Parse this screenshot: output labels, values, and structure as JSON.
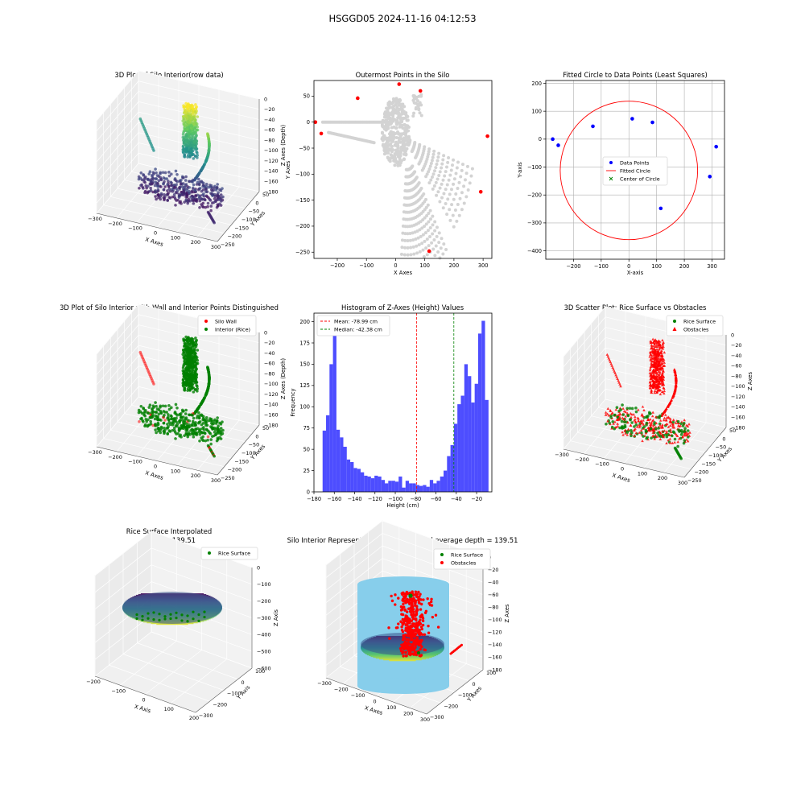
{
  "suptitle": "HSGGD05 2024-11-16 04:12:53",
  "colors": {
    "viridis": [
      "#440154",
      "#3b528b",
      "#21918c",
      "#5ec962",
      "#fde725"
    ],
    "grey_points": "#d3d3d3",
    "red": "#ff0000",
    "green": "#008000",
    "blue": "#0000ff",
    "hist_blue": "#4d4dff",
    "wall_blue": "#87ceeb"
  },
  "chart_data": [
    {
      "id": "p1",
      "type": "scatter3d",
      "title": "3D Plot of Silo Interior(row data)",
      "xlabel": "X Axes",
      "ylabel": "Y Axes",
      "zlabel": "Z Axes (Depth)",
      "xticks": [
        "−300",
        "−200",
        "−100",
        "0",
        "100",
        "200",
        "300"
      ],
      "yticks": [
        "50",
        "0",
        "−50",
        "−100",
        "−150",
        "−200",
        "−250"
      ],
      "zticks": [
        "0",
        "−20",
        "−40",
        "−60",
        "−80",
        "−100",
        "−120",
        "−140",
        "−160",
        "−180"
      ],
      "colormap": "viridis"
    },
    {
      "id": "p2",
      "type": "scatter",
      "title": "Outermost Points in the Silo",
      "xlabel": "X Axes",
      "ylabel": "Y Axes",
      "xlim": [
        -280,
        330
      ],
      "ylim": [
        -262,
        80
      ],
      "xticks": [
        -200,
        -100,
        0,
        100,
        200,
        300
      ],
      "yticks": [
        50,
        0,
        -50,
        -100,
        -150,
        -200,
        -250
      ],
      "outermost_points": [
        [
          -275,
          0
        ],
        [
          -255,
          -22
        ],
        [
          -130,
          46
        ],
        [
          12,
          73
        ],
        [
          85,
          60
        ],
        [
          315,
          -27
        ],
        [
          292,
          -134
        ],
        [
          115,
          -248
        ]
      ]
    },
    {
      "id": "p3",
      "type": "scatter",
      "title": "Fitted Circle to Data Points (Least Squares)",
      "xlabel": "X-axis",
      "ylabel": "Y-axis",
      "xlim": [
        -300,
        345
      ],
      "ylim": [
        -430,
        210
      ],
      "xticks": [
        -200,
        -100,
        0,
        100,
        200,
        300
      ],
      "yticks": [
        200,
        100,
        0,
        -100,
        -200,
        -300,
        -400
      ],
      "grid": true,
      "data_points": [
        [
          -275,
          0
        ],
        [
          -255,
          -22
        ],
        [
          -130,
          46
        ],
        [
          12,
          73
        ],
        [
          85,
          60
        ],
        [
          315,
          -27
        ],
        [
          292,
          -134
        ],
        [
          115,
          -248
        ]
      ],
      "circle_center": [
        0,
        -112
      ],
      "circle_radius": 248,
      "legend": [
        "Data Points",
        "Fitted Circle",
        "Center of Circle"
      ],
      "legend_position": "center right"
    },
    {
      "id": "p4",
      "type": "scatter3d",
      "title": "3D Plot of Silo Interior with Wall and Interior Points Distinguished",
      "xlabel": "X Axes",
      "ylabel": "Y Axes",
      "zlabel": "Z Axes (Depth)",
      "xticks": [
        "−300",
        "−200",
        "−100",
        "0",
        "100",
        "200",
        "300"
      ],
      "yticks": [
        "50",
        "0",
        "−50",
        "−100",
        "−150",
        "−200",
        "−250"
      ],
      "zticks": [
        "0",
        "−20",
        "−40",
        "−60",
        "−80",
        "−100",
        "−120",
        "−140",
        "−160",
        "−180"
      ],
      "legend": [
        "Silo Wall",
        "Interior (Rice)"
      ],
      "legend_position": "upper right"
    },
    {
      "id": "p5",
      "type": "bar",
      "title": "Histogram of Z-Axes (Height) Values",
      "xlabel": "Height (cm)",
      "ylabel": "Frequency",
      "xlim": [
        -180,
        -5
      ],
      "ylim": [
        0,
        210
      ],
      "xticks": [
        -180,
        -160,
        -140,
        -120,
        -100,
        -80,
        -60,
        -40,
        -20
      ],
      "yticks": [
        0,
        25,
        50,
        75,
        100,
        125,
        150,
        175,
        200
      ],
      "bin_start": -171.5,
      "bin_width": 3.4,
      "counts": [
        72,
        90,
        150,
        187,
        73,
        64,
        53,
        38,
        35,
        28,
        27,
        23,
        19,
        18,
        16,
        19,
        18,
        14,
        10,
        13,
        13,
        12,
        18,
        5,
        13,
        10,
        10,
        8,
        7,
        8,
        6,
        14,
        10,
        13,
        18,
        25,
        42,
        55,
        80,
        103,
        113,
        150,
        136,
        105,
        127,
        186,
        201,
        108
      ],
      "mean": -78.99,
      "median": -42.38,
      "legend": [
        "Mean: -78.99 cm",
        "Median: -42.38 cm"
      ],
      "legend_position": "upper left"
    },
    {
      "id": "p6",
      "type": "scatter3d",
      "title": "3D Scatter Plot: Rice Surface vs Obstacles",
      "xlabel": "X Axes",
      "ylabel": "Y Axes",
      "zlabel": "Z Axes",
      "xticks": [
        "−300",
        "−200",
        "−100",
        "0",
        "100",
        "200",
        "300"
      ],
      "yticks": [
        "50",
        "0",
        "−50",
        "−100",
        "−150",
        "−200",
        "−250"
      ],
      "zticks": [
        "0",
        "−20",
        "−40",
        "−60",
        "−80",
        "−100",
        "−120",
        "−140",
        "−160",
        "−180"
      ],
      "legend": [
        "Rice Surface",
        "Obstacles"
      ],
      "legend_position": "upper right"
    },
    {
      "id": "p7",
      "type": "surface3d",
      "title_line1": "Rice Surface Interpolated",
      "title_line2": "depth = 139.51",
      "xlabel": "X Axis",
      "ylabel": "Y Axis",
      "zlabel": "Z Axis",
      "xticks": [
        "−200",
        "−100",
        "0",
        "100",
        "200"
      ],
      "yticks": [
        "100",
        "0",
        "−100",
        "−200",
        "−300"
      ],
      "zticks": [
        "0",
        "−100",
        "−200",
        "−300",
        "−400",
        "−500",
        "−600"
      ],
      "legend": [
        "Rice Surface"
      ],
      "legend_position": "upper right"
    },
    {
      "id": "p8",
      "type": "surface3d",
      "title": "Silo Interior Representation using weighted average depth = 139.51",
      "xlabel": "X Axes",
      "ylabel": "Y Axes",
      "zlabel": "Z Axes",
      "xticks": [
        "−300",
        "−200",
        "−100",
        "0",
        "100",
        "200",
        "300"
      ],
      "yticks": [
        "100",
        "0",
        "−100",
        "−200",
        "−300"
      ],
      "zticks": [
        "0",
        "−20",
        "−40",
        "−60",
        "−80",
        "−100",
        "−120",
        "−140",
        "−160",
        "−180"
      ],
      "legend": [
        "Rice Surface",
        "Obstacles"
      ],
      "legend_position": "upper center"
    }
  ]
}
